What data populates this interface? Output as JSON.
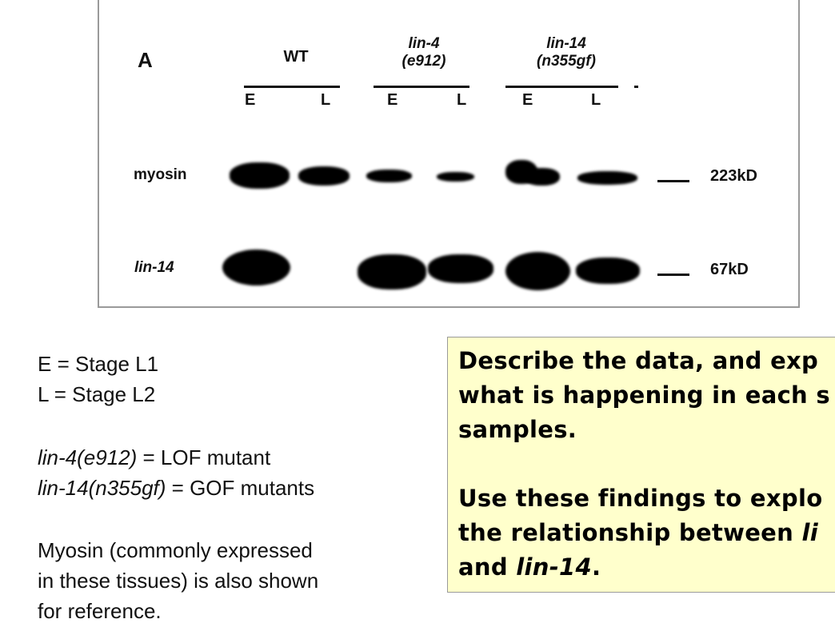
{
  "blot": {
    "panel_label": "A",
    "groups": [
      {
        "line1": "WT",
        "line2": ""
      },
      {
        "line1": "lin-4",
        "line2": "(e912)"
      },
      {
        "line1": "lin-14",
        "line2": "(n355gf)"
      }
    ],
    "lanes": [
      "E",
      "L",
      "E",
      "L",
      "E",
      "L"
    ],
    "rows": [
      {
        "label": "myosin",
        "marker": "223kD"
      },
      {
        "label": "lin-14",
        "marker": "67kD"
      }
    ]
  },
  "legend": {
    "lines": [
      "E = Stage L1",
      "L = Stage L2",
      "lin-4(e912)",
      " = LOF mutant",
      "lin-14(n355gf)",
      " = GOF mutants",
      "Myosin (commonly expressed",
      "in these tissues) is also shown",
      "for reference."
    ]
  },
  "question_box": {
    "background": "#ffffcc",
    "para1": [
      "Describe the data, and exp",
      "what is happening in each s",
      "samples."
    ],
    "para2_line1": "Use these findings to explo",
    "para2_line2_a": "the relationship between ",
    "para2_line2_b": "li",
    "para2_line3_a": "and ",
    "para2_line3_b": "lin-14",
    "para2_line3_c": "."
  }
}
